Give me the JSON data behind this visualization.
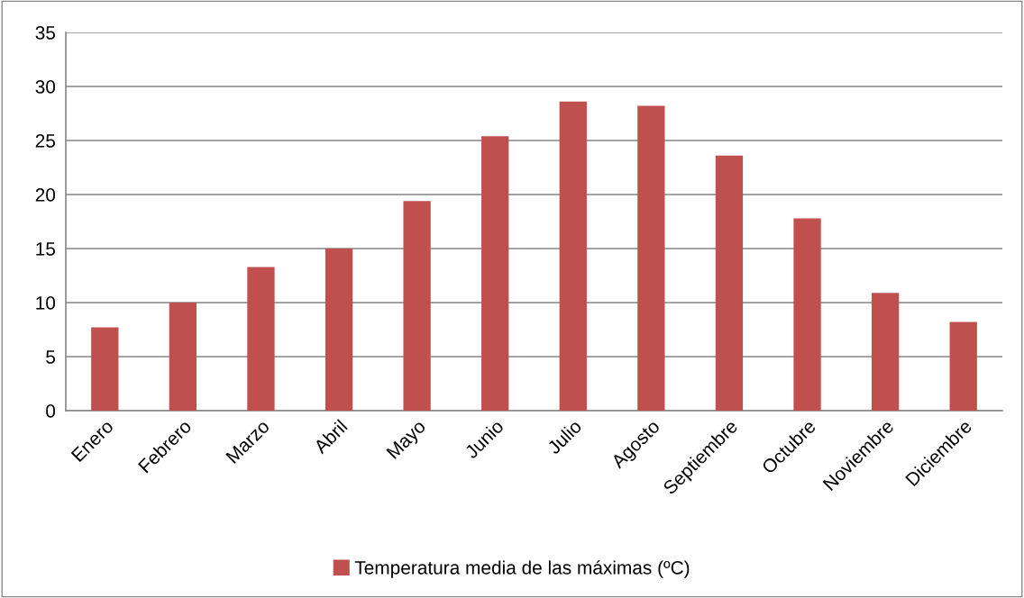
{
  "chart_data": {
    "type": "bar",
    "categories": [
      "Enero",
      "Febrero",
      "Marzo",
      "Abril",
      "Mayo",
      "Junio",
      "Julio",
      "Agosto",
      "Septiembre",
      "Octubre",
      "Noviembre",
      "Diciembre"
    ],
    "series": [
      {
        "name": "Temperatura media de las máximas (ºC)",
        "color": "#c0504d",
        "values": [
          7.7,
          10.0,
          13.3,
          15.0,
          19.4,
          25.4,
          28.6,
          28.2,
          23.6,
          17.8,
          10.9,
          8.2
        ]
      }
    ],
    "ylim": [
      0,
      35
    ],
    "yticks": [
      0,
      5,
      10,
      15,
      20,
      25,
      30,
      35
    ],
    "grid": "y",
    "legend": "bottom"
  }
}
